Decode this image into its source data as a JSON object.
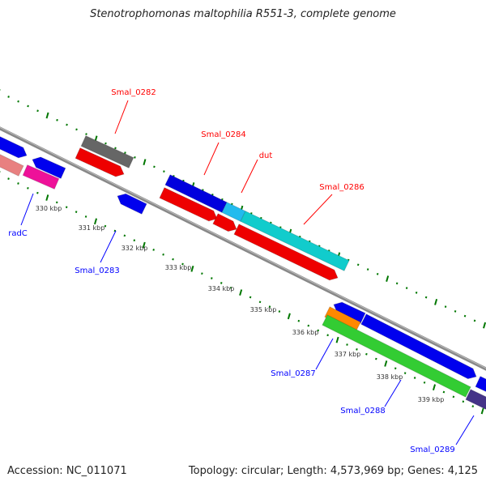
{
  "title": "Stenotrophomonas maltophilia R551-3, complete genome",
  "footer": {
    "accession": "Accession: NC_011071",
    "topology": "Topology: circular; Length: 4,573,969 bp; Genes: 4,125"
  },
  "colors": {
    "forward_label": "#ff0000",
    "reverse_label": "#0000ff",
    "ticks": "#007700",
    "backbone": "#888888"
  },
  "gene_labels": [
    {
      "name": "Smal_0282",
      "strand": "forward"
    },
    {
      "name": "Smal_0284",
      "strand": "forward"
    },
    {
      "name": "dut",
      "strand": "forward"
    },
    {
      "name": "Smal_0286",
      "strand": "forward"
    },
    {
      "name": "radC",
      "strand": "reverse"
    },
    {
      "name": "Smal_0283",
      "strand": "reverse"
    },
    {
      "name": "Smal_0287",
      "strand": "reverse"
    },
    {
      "name": "Smal_0288",
      "strand": "reverse"
    },
    {
      "name": "Smal_0289",
      "strand": "reverse"
    }
  ],
  "scale_labels": [
    "330 kbp",
    "331 kbp",
    "332 kbp",
    "333 kbp",
    "334 kbp",
    "335 kbp",
    "336 kbp",
    "337 kbp",
    "338 kbp",
    "339 kbp"
  ]
}
